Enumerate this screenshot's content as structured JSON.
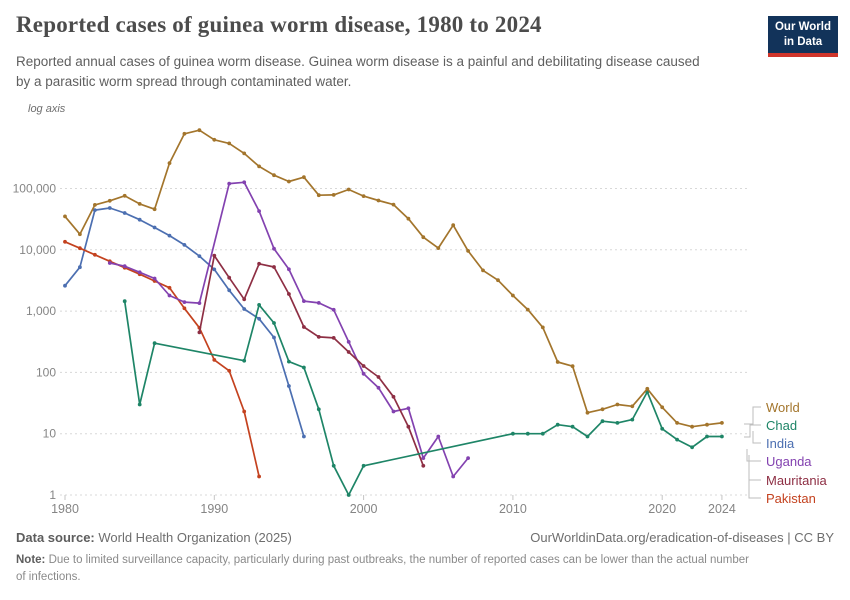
{
  "header": {
    "title": "Reported cases of guinea worm disease, 1980 to 2024",
    "subtitle": "Reported annual cases of guinea worm disease. Guinea worm disease is a painful and debilitating disease caused by a parasitic worm spread through contaminated water.",
    "logo": {
      "line1": "Our World",
      "line2": "in Data"
    }
  },
  "chart_data": {
    "type": "line",
    "title": "Reported cases of guinea worm disease, 1980 to 2024",
    "xlabel": "",
    "ylabel": "",
    "axis_scale_label": "log axis",
    "log_scale": true,
    "grid": "horizontal-dashed",
    "legend_position": "right",
    "xlim": [
      1979,
      2026
    ],
    "ylim": [
      1,
      1000000
    ],
    "x_ticks": [
      1980,
      1990,
      2000,
      2010,
      2020,
      2024
    ],
    "y_ticks": [
      {
        "value": 100000,
        "label": "100,000"
      },
      {
        "value": 10000,
        "label": "10,000"
      },
      {
        "value": 1000,
        "label": "1,000"
      },
      {
        "value": 100,
        "label": "100"
      },
      {
        "value": 10,
        "label": "10"
      },
      {
        "value": 1,
        "label": "1"
      }
    ],
    "series": [
      {
        "name": "India",
        "color": "#4c6fb1",
        "points": [
          [
            1980,
            2600
          ],
          [
            1981,
            5200
          ],
          [
            1982,
            44500
          ],
          [
            1983,
            48000
          ],
          [
            1984,
            39792
          ],
          [
            1985,
            30950
          ],
          [
            1986,
            23070
          ],
          [
            1987,
            17031
          ],
          [
            1988,
            12023
          ],
          [
            1989,
            7881
          ],
          [
            1990,
            4798
          ],
          [
            1991,
            2185
          ],
          [
            1992,
            1081
          ],
          [
            1993,
            750
          ],
          [
            1994,
            371
          ],
          [
            1995,
            60
          ],
          [
            1996,
            9
          ]
        ]
      },
      {
        "name": "Pakistan",
        "color": "#c4421f",
        "points": [
          [
            1980,
            13500
          ],
          [
            1981,
            10600
          ],
          [
            1982,
            8300
          ],
          [
            1983,
            6500
          ],
          [
            1984,
            5100
          ],
          [
            1985,
            4000
          ],
          [
            1986,
            3100
          ],
          [
            1987,
            2400
          ],
          [
            1988,
            1110
          ],
          [
            1989,
            534
          ],
          [
            1990,
            160
          ],
          [
            1991,
            106
          ],
          [
            1992,
            23
          ],
          [
            1993,
            2
          ]
        ]
      },
      {
        "name": "Uganda",
        "color": "#8342b0",
        "points": [
          [
            1983,
            6100
          ],
          [
            1984,
            5400
          ],
          [
            1985,
            4300
          ],
          [
            1986,
            3400
          ],
          [
            1987,
            1800
          ],
          [
            1988,
            1400
          ],
          [
            1989,
            1350
          ],
          [
            1991,
            120000
          ],
          [
            1992,
            126369
          ],
          [
            1993,
            42852
          ],
          [
            1994,
            10425
          ],
          [
            1995,
            4810
          ],
          [
            1996,
            1455
          ],
          [
            1997,
            1360
          ],
          [
            1998,
            1050
          ],
          [
            1999,
            315
          ],
          [
            2000,
            95
          ],
          [
            2001,
            56
          ],
          [
            2002,
            23
          ],
          [
            2003,
            26
          ],
          [
            2004,
            4
          ],
          [
            2005,
            9
          ],
          [
            2006,
            2
          ],
          [
            2007,
            4
          ]
        ]
      },
      {
        "name": "Mauritania",
        "color": "#8e2f44",
        "points": [
          [
            1989,
            450
          ],
          [
            1990,
            8036
          ],
          [
            1991,
            3500
          ],
          [
            1992,
            1557
          ],
          [
            1993,
            5900
          ],
          [
            1994,
            5250
          ],
          [
            1995,
            1900
          ],
          [
            1996,
            550
          ],
          [
            1997,
            380
          ],
          [
            1998,
            365
          ],
          [
            1999,
            215
          ],
          [
            2000,
            127
          ],
          [
            2001,
            84
          ],
          [
            2002,
            40
          ],
          [
            2003,
            13
          ],
          [
            2004,
            3
          ]
        ]
      },
      {
        "name": "Chad",
        "color": "#1e8567",
        "points": [
          [
            1984,
            1450
          ],
          [
            1985,
            30
          ],
          [
            1986,
            300
          ],
          [
            1992,
            155
          ],
          [
            1993,
            1260
          ],
          [
            1994,
            640
          ],
          [
            1995,
            150
          ],
          [
            1996,
            120
          ],
          [
            1997,
            25
          ],
          [
            1998,
            3
          ],
          [
            1999,
            1
          ],
          [
            2000,
            3
          ],
          [
            2010,
            10
          ],
          [
            2011,
            10
          ],
          [
            2012,
            10
          ],
          [
            2013,
            14
          ],
          [
            2014,
            13
          ],
          [
            2015,
            9
          ],
          [
            2016,
            16
          ],
          [
            2017,
            15
          ],
          [
            2018,
            17
          ],
          [
            2019,
            48
          ],
          [
            2020,
            12
          ],
          [
            2021,
            8
          ],
          [
            2022,
            6
          ],
          [
            2023,
            9
          ],
          [
            2024,
            9
          ]
        ]
      },
      {
        "name": "World",
        "color": "#a3752c",
        "points": [
          [
            1980,
            35000
          ],
          [
            1981,
            18000
          ],
          [
            1982,
            54000
          ],
          [
            1983,
            63000
          ],
          [
            1984,
            76000
          ],
          [
            1985,
            56000
          ],
          [
            1986,
            46000
          ],
          [
            1987,
            260000
          ],
          [
            1988,
            780000
          ],
          [
            1989,
            892055
          ],
          [
            1990,
            623579
          ],
          [
            1991,
            543585
          ],
          [
            1992,
            374202
          ],
          [
            1993,
            229773
          ],
          [
            1994,
            164973
          ],
          [
            1995,
            129852
          ],
          [
            1996,
            152814
          ],
          [
            1997,
            77863
          ],
          [
            1998,
            78557
          ],
          [
            1999,
            96293
          ],
          [
            2000,
            75223
          ],
          [
            2001,
            63717
          ],
          [
            2002,
            54638
          ],
          [
            2003,
            32193
          ],
          [
            2004,
            16026
          ],
          [
            2005,
            10674
          ],
          [
            2006,
            25217
          ],
          [
            2007,
            9585
          ],
          [
            2008,
            4619
          ],
          [
            2009,
            3190
          ],
          [
            2010,
            1797
          ],
          [
            2011,
            1058
          ],
          [
            2012,
            542
          ],
          [
            2013,
            148
          ],
          [
            2014,
            126
          ],
          [
            2015,
            22
          ],
          [
            2016,
            25
          ],
          [
            2017,
            30
          ],
          [
            2018,
            28
          ],
          [
            2019,
            54
          ],
          [
            2020,
            27
          ],
          [
            2021,
            15
          ],
          [
            2022,
            13
          ],
          [
            2023,
            14
          ],
          [
            2024,
            15
          ]
        ]
      }
    ],
    "legend_order": [
      "World",
      "Chad",
      "India",
      "Uganda",
      "Mauritania",
      "Pakistan"
    ]
  },
  "footer": {
    "source_label": "Data source:",
    "source_text": " World Health Organization (2025)",
    "url_text": "OurWorldinData.org/eradication-of-diseases",
    "divider": " | ",
    "license": "CC BY",
    "note_label": "Note:",
    "note_text": " Due to limited surveillance capacity, particularly during past outbreaks, the number of reported cases can be lower than the actual number of infections."
  }
}
